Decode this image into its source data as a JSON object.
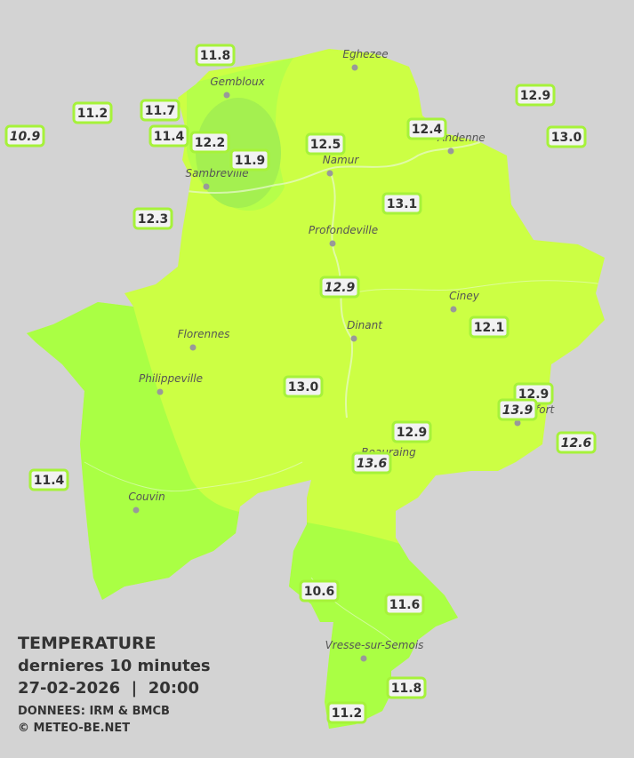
{
  "map": {
    "places": [
      "Gembloux",
      "Eghezee",
      "Andenne",
      "Namur",
      "Sambreville",
      "Profondeville",
      "Ciney",
      "Dinant",
      "Florennes",
      "Philippeville",
      "Couvin",
      "Vresse-sur-Semois",
      "Rochefort",
      "Beauraing"
    ],
    "stations": [
      {
        "value": "11.8"
      },
      {
        "value": "11.2"
      },
      {
        "value": "10.9",
        "italic": true
      },
      {
        "value": "11.7"
      },
      {
        "value": "11.4"
      },
      {
        "value": "12.2"
      },
      {
        "value": "11.9"
      },
      {
        "value": "12.5"
      },
      {
        "value": "12.4"
      },
      {
        "value": "12.9"
      },
      {
        "value": "13.0"
      },
      {
        "value": "12.3"
      },
      {
        "value": "13.1"
      },
      {
        "value": "12.9",
        "italic": true
      },
      {
        "value": "12.1"
      },
      {
        "value": "13.0"
      },
      {
        "value": "12.9"
      },
      {
        "value": "13.9",
        "italic": true
      },
      {
        "value": "12.9"
      },
      {
        "value": "12.6",
        "italic": true
      },
      {
        "value": "13.6",
        "italic": true
      },
      {
        "value": "11.4"
      },
      {
        "value": "10.6"
      },
      {
        "value": "11.6"
      },
      {
        "value": "11.8"
      },
      {
        "value": "11.2"
      }
    ],
    "legend": {
      "title": "TEMPERATURE",
      "subtitle": "dernieres 10 minutes",
      "date": "27-02-2026  |  20:00",
      "source": "DONNEES: IRM & BMCB",
      "credit": "© METEO-BE.NET"
    }
  }
}
